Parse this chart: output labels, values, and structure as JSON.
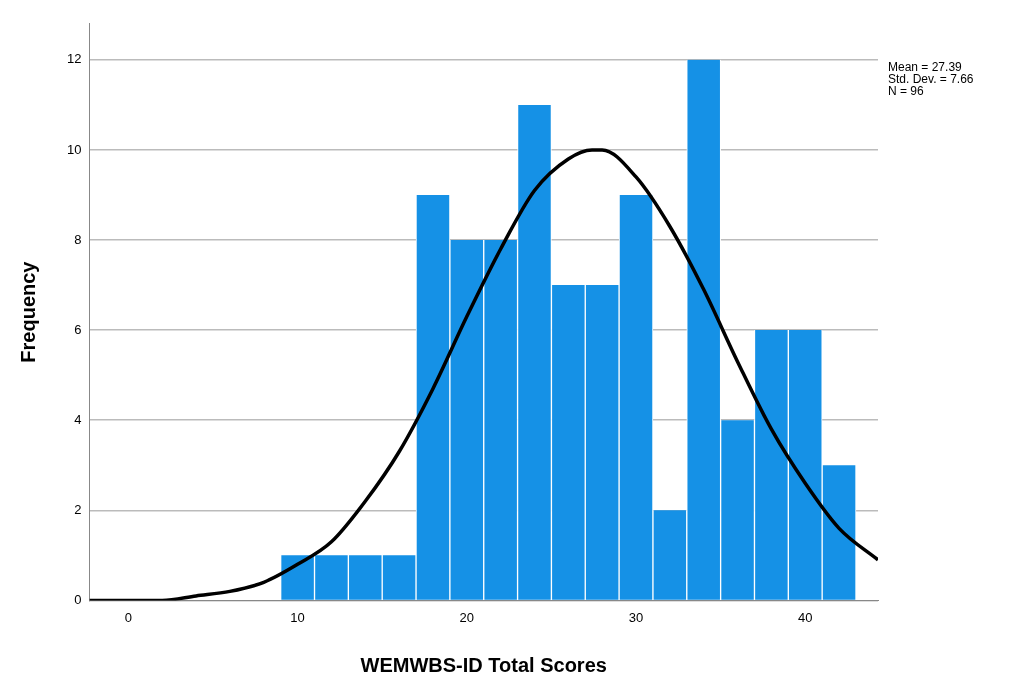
{
  "chart_data": {
    "type": "histogram",
    "xlabel": "WEMWBS-ID Total Scores",
    "ylabel": "Frequency",
    "bins": [
      9,
      11,
      13,
      15,
      17,
      19,
      21,
      23,
      25,
      27,
      29,
      31,
      33,
      35,
      37,
      39,
      41,
      43
    ],
    "values": [
      1,
      1,
      1,
      1,
      9,
      8,
      8,
      11,
      7,
      7,
      9,
      2,
      12,
      4,
      6,
      6,
      3
    ],
    "color": "#1591e6",
    "series": [
      {
        "type": "line",
        "color": "#000000",
        "x": [
          -2.3,
          0,
          2,
          4,
          6,
          8,
          10,
          12,
          14,
          16,
          18,
          20,
          22,
          24,
          26,
          27.4,
          28,
          30,
          32,
          34,
          36,
          38,
          40,
          42,
          44.3
        ],
        "values": [
          0,
          0,
          0,
          0.1,
          0.2,
          0.4,
          0.8,
          1.3,
          2.2,
          3.3,
          4.7,
          6.3,
          7.8,
          9.1,
          9.8,
          10,
          10,
          9.4,
          8.3,
          6.9,
          5.3,
          3.8,
          2.6,
          1.6,
          0.9
        ]
      }
    ],
    "xlim": [
      -2.3,
      44.3
    ],
    "xticks": [
      0,
      10,
      20,
      30,
      40
    ],
    "ylim": [
      0,
      12.8
    ],
    "yticks": [
      0,
      2,
      4,
      6,
      8,
      10,
      12
    ],
    "grid": "y",
    "legend": false,
    "marker": "none",
    "line_style": "solid",
    "annotations": [
      "Mean = 27.39",
      "Std. Dev. = 7.66",
      "N = 96"
    ]
  }
}
